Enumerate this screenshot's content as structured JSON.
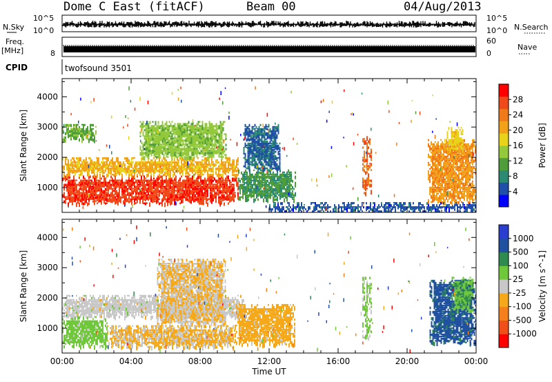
{
  "header": {
    "title": "Dome C East (fitACF)",
    "beam": "Beam 00",
    "date": "04/Aug/2013"
  },
  "strips": {
    "nsky_label": "N.Sky",
    "nsky_top": "10^5",
    "nsky_bottom": "10^0",
    "nsearch_label": "N.Search",
    "nsearch_top": "10^5",
    "nsearch_bottom": "10^0",
    "freq_label": "Freq.",
    "freq_unit": "[MHz]",
    "freq_top": "",
    "freq_bottom": "8",
    "nave_label": "Nave",
    "nave_top": "60",
    "nave_bottom": "0",
    "cpid_label": "CPID",
    "cpid_value": "twofsound 3501"
  },
  "colors": {
    "power": [
      "#0000ff",
      "#1f4fa8",
      "#2c8a72",
      "#4e9d3a",
      "#93c93a",
      "#e8d21a",
      "#f2a21a",
      "#f07a1a",
      "#f04a1a",
      "#ff0000"
    ],
    "velocity": [
      "#ff0000",
      "#f04f1a",
      "#f57f1a",
      "#f5a81a",
      "#c8c8c8",
      "#6fc83a",
      "#2e8a4e",
      "#2050a0",
      "#2a3fd0"
    ]
  },
  "chart_data": [
    {
      "type": "heatmap",
      "name": "power-panel",
      "xlabel": "",
      "ylabel": "Slant Range [km]",
      "xlim": [
        0,
        24
      ],
      "ylim": [
        180,
        4600
      ],
      "yticks": [
        1000,
        2000,
        3000,
        4000
      ],
      "colorbar": {
        "label": "Power [dB]",
        "ticks": [
          "4",
          "8",
          "12",
          "16",
          "20",
          "24",
          "28"
        ],
        "range": [
          0,
          32
        ]
      },
      "regions": [
        {
          "t0": 0.0,
          "t1": 10.2,
          "r0": 450,
          "r1": 1400,
          "value": 28
        },
        {
          "t0": 0.0,
          "t1": 10.2,
          "r0": 1400,
          "r1": 2000,
          "value": 20
        },
        {
          "t0": 4.5,
          "t1": 9.5,
          "r0": 2000,
          "r1": 3200,
          "value": 14
        },
        {
          "t0": 0.0,
          "t1": 2.0,
          "r0": 2600,
          "r1": 3100,
          "value": 12
        },
        {
          "t0": 10.2,
          "t1": 13.5,
          "r0": 600,
          "r1": 1600,
          "value": 10
        },
        {
          "t0": 10.5,
          "t1": 12.6,
          "r0": 1600,
          "r1": 3100,
          "value": 6
        },
        {
          "t0": 17.4,
          "t1": 17.9,
          "r0": 800,
          "r1": 2700,
          "value": 26
        },
        {
          "t0": 21.2,
          "t1": 24.0,
          "r0": 500,
          "r1": 2600,
          "value": 22
        },
        {
          "t0": 22.3,
          "t1": 23.2,
          "r0": 2300,
          "r1": 3000,
          "value": 18
        },
        {
          "t0": 12.0,
          "t1": 24.0,
          "r0": 200,
          "r1": 520,
          "value": 5
        }
      ]
    },
    {
      "type": "heatmap",
      "name": "velocity-panel",
      "xlabel": "Time UT",
      "ylabel": "Slant Range [km]",
      "xlim": [
        0,
        24
      ],
      "ylim": [
        180,
        4600
      ],
      "xticks": [
        "00:00",
        "04:00",
        "08:00",
        "12:00",
        "16:00",
        "20:00",
        "00:00"
      ],
      "yticks": [
        1000,
        2000,
        3000,
        4000
      ],
      "colorbar": {
        "label": "Velocity [m s^-1]",
        "ticks": [
          "-1000",
          "-500",
          "-100",
          "-25",
          "25",
          "100",
          "500",
          "1000"
        ],
        "range": [
          -1400,
          1400
        ]
      },
      "regions": [
        {
          "t0": 0.0,
          "t1": 2.6,
          "r0": 400,
          "r1": 1400,
          "value": 300
        },
        {
          "t0": 2.6,
          "t1": 10.0,
          "r0": 400,
          "r1": 1100,
          "value": -200
        },
        {
          "t0": 0.0,
          "t1": 10.5,
          "r0": 1400,
          "r1": 2100,
          "value": 0
        },
        {
          "t0": 5.5,
          "t1": 9.5,
          "r0": 1100,
          "r1": 3300,
          "value": -150
        },
        {
          "t0": 10.0,
          "t1": 13.5,
          "r0": 500,
          "r1": 1800,
          "value": -300
        },
        {
          "t0": 17.4,
          "t1": 17.9,
          "r0": 700,
          "r1": 2700,
          "value": 250
        },
        {
          "t0": 21.3,
          "t1": 24.0,
          "r0": 500,
          "r1": 2600,
          "value": 900
        },
        {
          "t0": 22.5,
          "t1": 23.8,
          "r0": 1600,
          "r1": 2700,
          "value": 400
        }
      ]
    }
  ]
}
